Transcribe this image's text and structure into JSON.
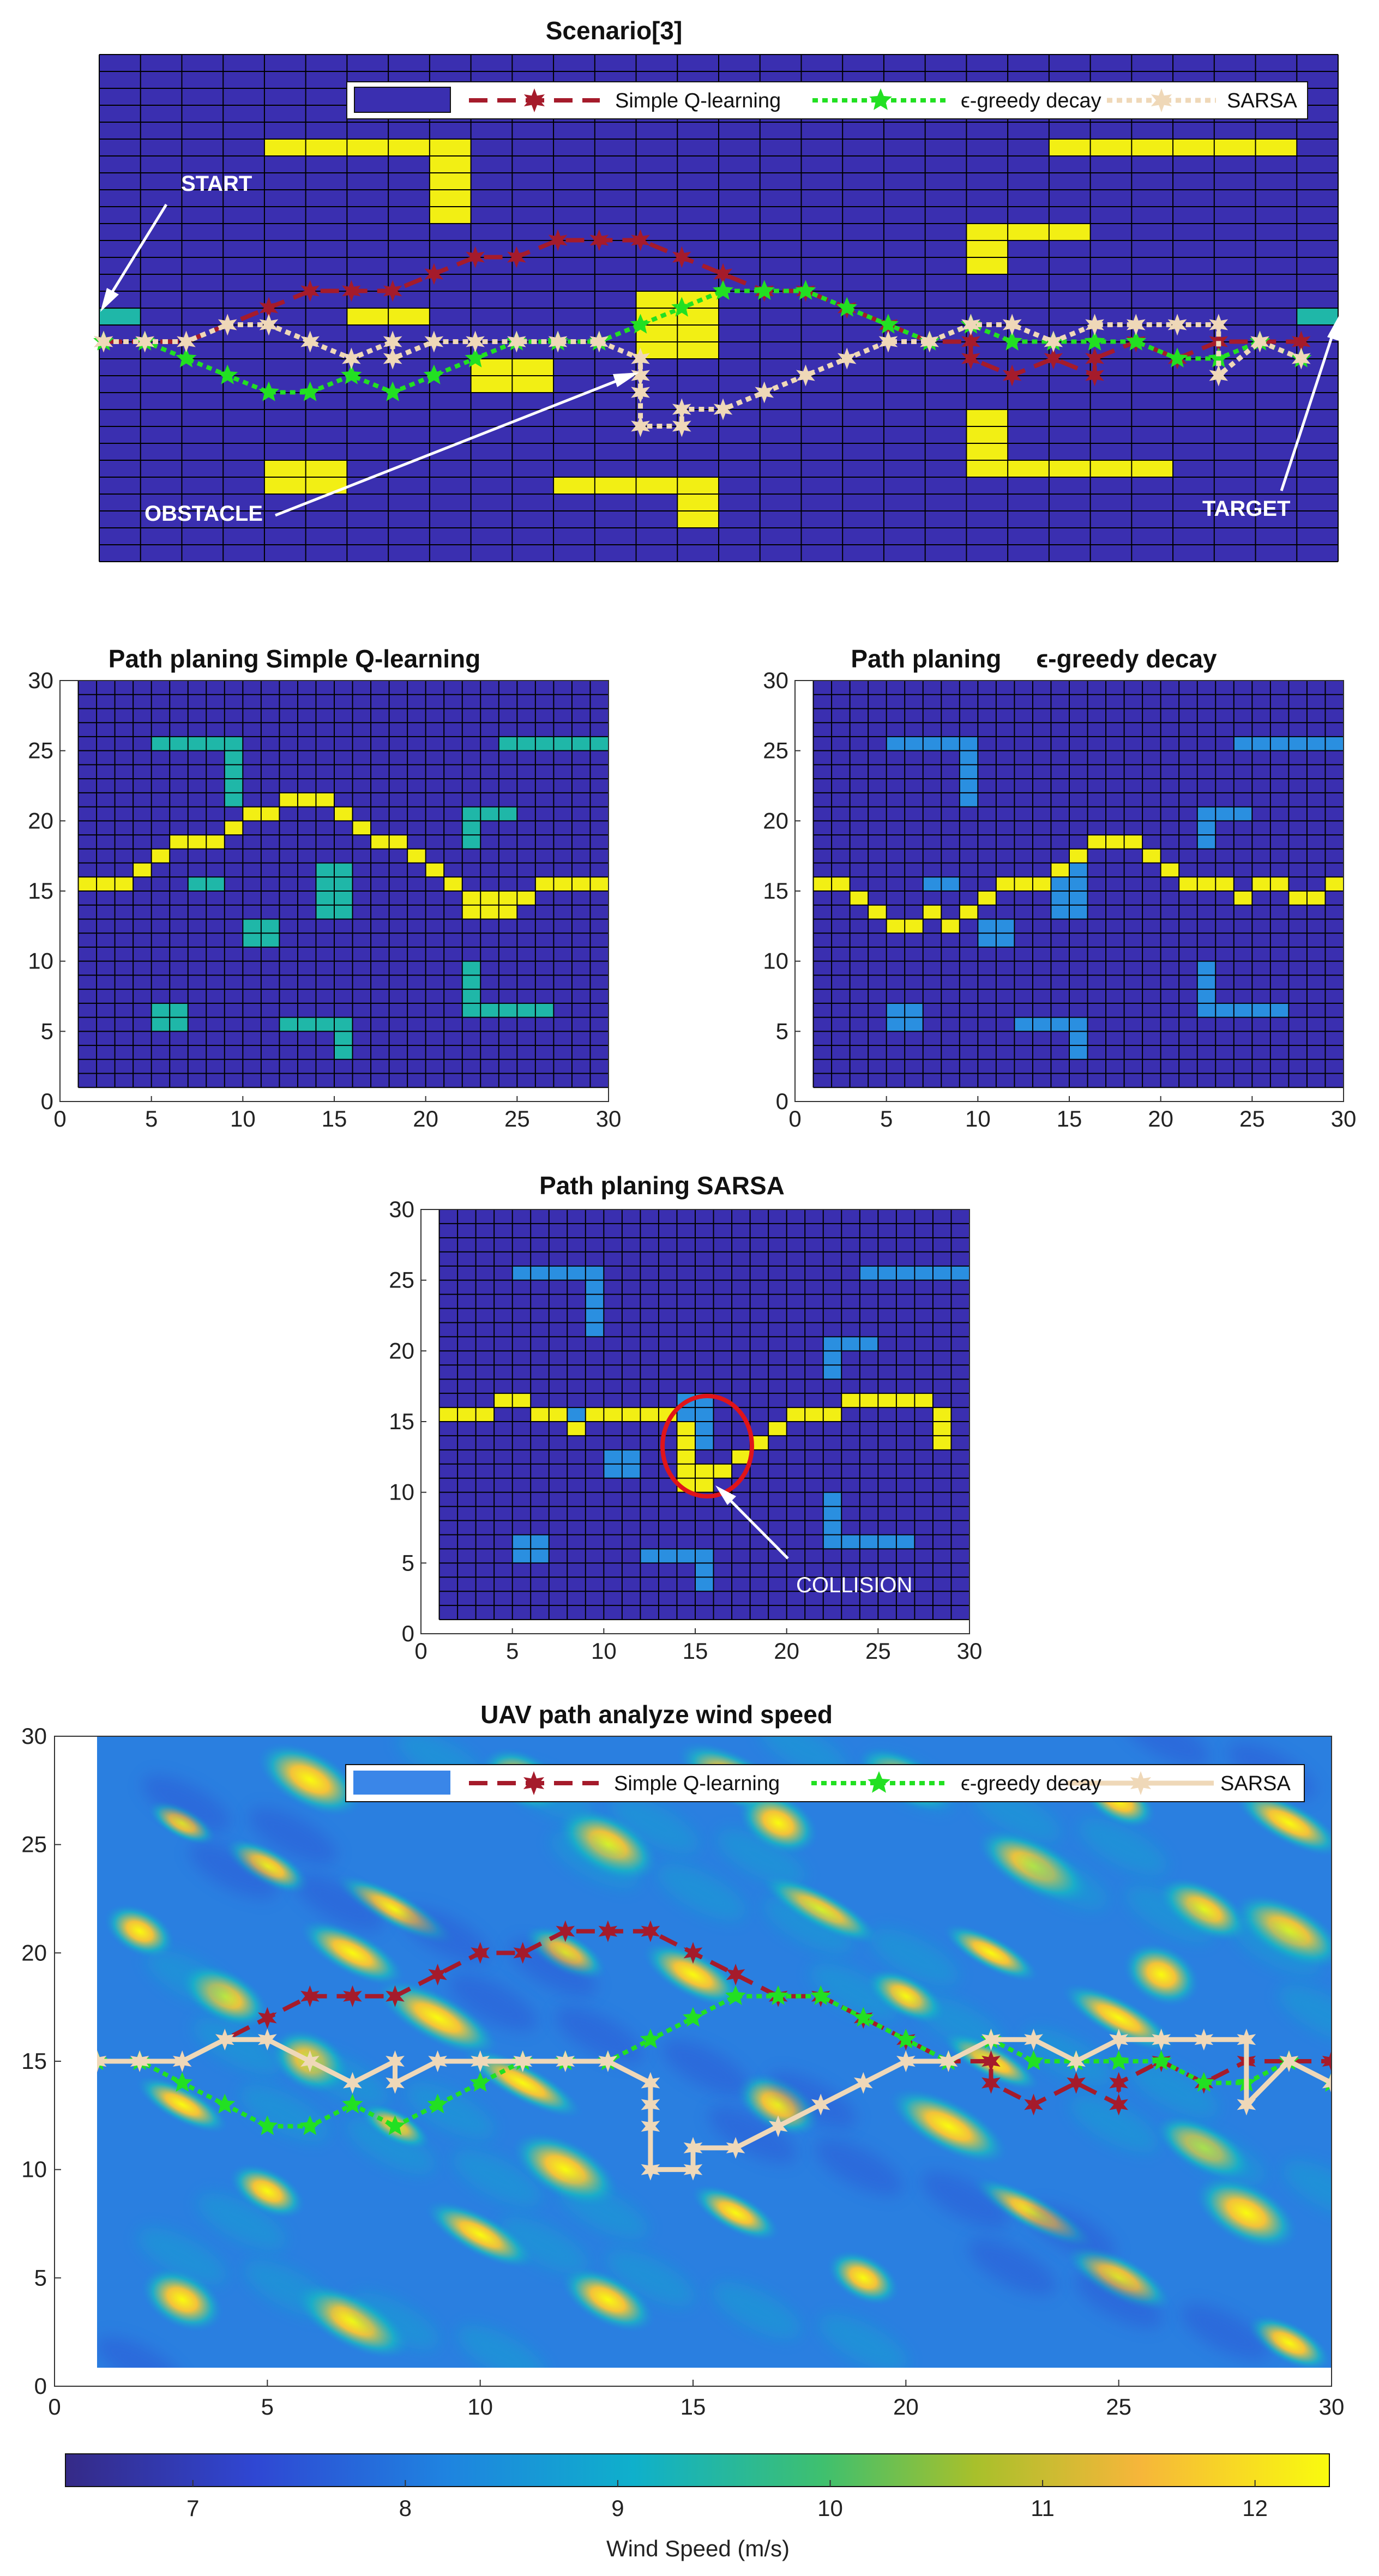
{
  "colors": {
    "grid_bg": "#3a2fb0",
    "obstacle_scenario": "#f2ef14",
    "obstacle_panel_q": "#1fb7a8",
    "obstacle_panel_e": "#2a8fe0",
    "path_cell": "#f2ef14",
    "q_learning": "#a51b2b",
    "eps_greedy": "#22e022",
    "sarsa": "#efd8b8",
    "collision_ring": "#e0141a"
  },
  "chart_data": [
    {
      "type": "line",
      "title": "Scenario[3]",
      "grid": {
        "cols": 30,
        "rows": 30
      },
      "legend": {
        "placement": "top",
        "swatch_color": "#3a2fb0",
        "entries": [
          "Simple Q-learning",
          "ϵ-greedy decay",
          "SARSA"
        ]
      },
      "annotations": [
        "START",
        "OBSTACLE",
        "TARGET"
      ],
      "obstacles": [
        {
          "x": 5,
          "y": 25
        },
        {
          "x": 6,
          "y": 25
        },
        {
          "x": 7,
          "y": 25
        },
        {
          "x": 8,
          "y": 25
        },
        {
          "x": 9,
          "y": 25
        },
        {
          "x": 9,
          "y": 24
        },
        {
          "x": 9,
          "y": 23
        },
        {
          "x": 9,
          "y": 22
        },
        {
          "x": 9,
          "y": 21
        },
        {
          "x": 24,
          "y": 25
        },
        {
          "x": 25,
          "y": 25
        },
        {
          "x": 26,
          "y": 25
        },
        {
          "x": 27,
          "y": 25
        },
        {
          "x": 28,
          "y": 25
        },
        {
          "x": 29,
          "y": 25
        },
        {
          "x": 22,
          "y": 20
        },
        {
          "x": 23,
          "y": 20
        },
        {
          "x": 24,
          "y": 20
        },
        {
          "x": 22,
          "y": 19
        },
        {
          "x": 22,
          "y": 18
        },
        {
          "x": 7,
          "y": 15
        },
        {
          "x": 8,
          "y": 15
        },
        {
          "x": 14,
          "y": 16
        },
        {
          "x": 15,
          "y": 16
        },
        {
          "x": 14,
          "y": 15
        },
        {
          "x": 15,
          "y": 15
        },
        {
          "x": 14,
          "y": 14
        },
        {
          "x": 15,
          "y": 14
        },
        {
          "x": 14,
          "y": 13
        },
        {
          "x": 15,
          "y": 13
        },
        {
          "x": 10,
          "y": 12
        },
        {
          "x": 11,
          "y": 12
        },
        {
          "x": 10,
          "y": 11
        },
        {
          "x": 11,
          "y": 11
        },
        {
          "x": 22,
          "y": 9
        },
        {
          "x": 22,
          "y": 8
        },
        {
          "x": 22,
          "y": 7
        },
        {
          "x": 22,
          "y": 6
        },
        {
          "x": 23,
          "y": 6
        },
        {
          "x": 24,
          "y": 6
        },
        {
          "x": 25,
          "y": 6
        },
        {
          "x": 26,
          "y": 6
        },
        {
          "x": 5,
          "y": 6
        },
        {
          "x": 6,
          "y": 6
        },
        {
          "x": 5,
          "y": 5
        },
        {
          "x": 6,
          "y": 5
        },
        {
          "x": 12,
          "y": 5
        },
        {
          "x": 13,
          "y": 5
        },
        {
          "x": 14,
          "y": 5
        },
        {
          "x": 15,
          "y": 5
        },
        {
          "x": 15,
          "y": 4
        },
        {
          "x": 15,
          "y": 3
        }
      ],
      "series": [
        {
          "name": "Simple Q-learning",
          "x": [
            1,
            2,
            3,
            4,
            5,
            6,
            7,
            8,
            9,
            10,
            11,
            12,
            13,
            14,
            15,
            16,
            17,
            18,
            19,
            20,
            21,
            22,
            22,
            23,
            24,
            25,
            25,
            26,
            27,
            28,
            29,
            30
          ],
          "y": [
            15,
            15,
            15,
            16,
            17,
            18,
            18,
            18,
            19,
            20,
            20,
            21,
            21,
            21,
            20,
            19,
            18,
            18,
            17,
            16,
            15,
            15,
            14,
            13,
            14,
            13,
            14,
            15,
            14,
            15,
            15,
            15
          ]
        },
        {
          "name": "ϵ-greedy decay",
          "x": [
            1,
            2,
            3,
            4,
            5,
            6,
            7,
            8,
            9,
            10,
            11,
            12,
            13,
            14,
            15,
            16,
            17,
            18,
            19,
            20,
            21,
            22,
            23,
            24,
            25,
            26,
            27,
            28,
            29,
            30
          ],
          "y": [
            15,
            15,
            14,
            13,
            12,
            12,
            13,
            12,
            13,
            14,
            15,
            15,
            15,
            16,
            17,
            18,
            18,
            18,
            17,
            16,
            15,
            16,
            15,
            15,
            15,
            15,
            14,
            14,
            15,
            14
          ]
        },
        {
          "name": "SARSA",
          "x": [
            1,
            2,
            3,
            4,
            5,
            6,
            7,
            8,
            8,
            9,
            10,
            11,
            12,
            13,
            14,
            14,
            14,
            14,
            15,
            15,
            16,
            17,
            18,
            19,
            20,
            21,
            22,
            23,
            24,
            25,
            26,
            27,
            28,
            28,
            29,
            30
          ],
          "y": [
            15,
            15,
            15,
            16,
            16,
            15,
            14,
            15,
            14,
            15,
            15,
            15,
            15,
            15,
            14,
            13,
            12,
            10,
            10,
            11,
            11,
            12,
            13,
            14,
            15,
            15,
            16,
            16,
            15,
            16,
            16,
            16,
            16,
            13,
            15,
            14
          ]
        }
      ]
    },
    {
      "type": "heatmap",
      "title": "Path planing Simple Q-learning",
      "xlim": [
        0,
        30
      ],
      "ylim": [
        0,
        30
      ],
      "xticks": [
        "0",
        "5",
        "10",
        "15",
        "20",
        "25",
        "30"
      ],
      "yticks": [
        "0",
        "5",
        "10",
        "15",
        "20",
        "25",
        "30"
      ],
      "path": [
        [
          1,
          15
        ],
        [
          2,
          15
        ],
        [
          3,
          15
        ],
        [
          4,
          16
        ],
        [
          5,
          17
        ],
        [
          6,
          18
        ],
        [
          7,
          18
        ],
        [
          8,
          18
        ],
        [
          9,
          19
        ],
        [
          10,
          20
        ],
        [
          11,
          20
        ],
        [
          12,
          21
        ],
        [
          13,
          21
        ],
        [
          14,
          21
        ],
        [
          15,
          20
        ],
        [
          16,
          19
        ],
        [
          17,
          18
        ],
        [
          18,
          18
        ],
        [
          19,
          17
        ],
        [
          20,
          16
        ],
        [
          21,
          15
        ],
        [
          22,
          14
        ],
        [
          22,
          13
        ],
        [
          23,
          13
        ],
        [
          23,
          14
        ],
        [
          24,
          14
        ],
        [
          24,
          13
        ],
        [
          25,
          14
        ],
        [
          26,
          15
        ],
        [
          27,
          15
        ],
        [
          28,
          15
        ],
        [
          29,
          15
        ]
      ]
    },
    {
      "type": "heatmap",
      "title": "Path planing     ϵ-greedy decay",
      "xlim": [
        0,
        30
      ],
      "ylim": [
        0,
        30
      ],
      "xticks": [
        "0",
        "5",
        "10",
        "15",
        "20",
        "25",
        "30"
      ],
      "yticks": [
        "0",
        "5",
        "10",
        "15",
        "20",
        "25",
        "30"
      ],
      "path": [
        [
          1,
          15
        ],
        [
          2,
          15
        ],
        [
          3,
          14
        ],
        [
          4,
          13
        ],
        [
          5,
          12
        ],
        [
          6,
          12
        ],
        [
          7,
          13
        ],
        [
          8,
          12
        ],
        [
          9,
          13
        ],
        [
          10,
          14
        ],
        [
          11,
          15
        ],
        [
          12,
          15
        ],
        [
          13,
          15
        ],
        [
          14,
          16
        ],
        [
          15,
          17
        ],
        [
          16,
          18
        ],
        [
          17,
          18
        ],
        [
          18,
          18
        ],
        [
          19,
          17
        ],
        [
          20,
          16
        ],
        [
          21,
          15
        ],
        [
          22,
          15
        ],
        [
          23,
          15
        ],
        [
          24,
          14
        ],
        [
          25,
          15
        ],
        [
          26,
          15
        ],
        [
          27,
          14
        ],
        [
          28,
          14
        ],
        [
          29,
          15
        ]
      ]
    },
    {
      "type": "heatmap",
      "title": "Path planing SARSA",
      "annotation": "COLLISION",
      "xlim": [
        0,
        30
      ],
      "ylim": [
        0,
        30
      ],
      "xticks": [
        "0",
        "5",
        "10",
        "15",
        "20",
        "25",
        "30"
      ],
      "yticks": [
        "0",
        "5",
        "10",
        "15",
        "20",
        "25",
        "30"
      ],
      "path": [
        [
          1,
          15
        ],
        [
          2,
          15
        ],
        [
          3,
          15
        ],
        [
          4,
          16
        ],
        [
          5,
          16
        ],
        [
          6,
          15
        ],
        [
          7,
          15
        ],
        [
          8,
          14
        ],
        [
          9,
          15
        ],
        [
          10,
          15
        ],
        [
          11,
          15
        ],
        [
          12,
          15
        ],
        [
          13,
          15
        ],
        [
          14,
          14
        ],
        [
          14,
          13
        ],
        [
          14,
          12
        ],
        [
          14,
          11
        ],
        [
          14,
          10
        ],
        [
          15,
          10
        ],
        [
          15,
          11
        ],
        [
          16,
          11
        ],
        [
          17,
          12
        ],
        [
          18,
          13
        ],
        [
          19,
          14
        ],
        [
          20,
          15
        ],
        [
          21,
          15
        ],
        [
          22,
          15
        ],
        [
          23,
          16
        ],
        [
          24,
          16
        ],
        [
          25,
          16
        ],
        [
          26,
          16
        ],
        [
          27,
          16
        ],
        [
          28,
          15
        ],
        [
          28,
          14
        ],
        [
          28,
          13
        ]
      ]
    },
    {
      "type": "line",
      "title": "UAV path analyze wind speed",
      "xlim": [
        0,
        30
      ],
      "ylim": [
        0,
        30
      ],
      "xticks": [
        "0",
        "5",
        "10",
        "15",
        "20",
        "25",
        "30"
      ],
      "yticks": [
        "0",
        "5",
        "10",
        "15",
        "20",
        "25",
        "30"
      ],
      "legend": {
        "placement": "top",
        "swatch_color": "#3a86e8",
        "entries": [
          "Simple Q-learning",
          "ϵ-greedy decay",
          "SARSA"
        ]
      },
      "colorbar": {
        "label": "Wind Speed (m/s)",
        "ticks": [
          "7",
          "8",
          "9",
          "10",
          "11",
          "12"
        ],
        "range": [
          6.4,
          12.35
        ]
      },
      "wind_hotspots": [
        [
          3,
          26
        ],
        [
          6,
          28
        ],
        [
          11,
          28
        ],
        [
          16,
          28
        ],
        [
          20,
          28
        ],
        [
          25,
          27
        ],
        [
          29,
          26
        ],
        [
          5,
          24
        ],
        [
          8,
          22
        ],
        [
          13,
          25
        ],
        [
          17,
          26
        ],
        [
          23,
          24
        ],
        [
          27,
          22
        ],
        [
          2,
          21
        ],
        [
          7,
          20
        ],
        [
          12,
          20
        ],
        [
          18,
          22
        ],
        [
          22,
          20
        ],
        [
          26,
          19
        ],
        [
          29,
          21
        ],
        [
          4,
          18
        ],
        [
          9,
          17
        ],
        [
          15,
          19
        ],
        [
          20,
          18
        ],
        [
          25,
          17
        ],
        [
          3,
          13
        ],
        [
          8,
          12
        ],
        [
          12,
          10
        ],
        [
          17,
          13
        ],
        [
          21,
          12
        ],
        [
          27,
          11
        ],
        [
          5,
          9
        ],
        [
          10,
          7
        ],
        [
          16,
          8
        ],
        [
          23,
          8
        ],
        [
          28,
          8
        ],
        [
          3,
          4
        ],
        [
          7,
          3
        ],
        [
          13,
          4
        ],
        [
          19,
          5
        ],
        [
          25,
          5
        ],
        [
          29,
          2
        ],
        [
          11,
          14
        ],
        [
          22,
          15
        ],
        [
          6,
          15
        ]
      ],
      "series": [
        {
          "name": "Simple Q-learning",
          "x": [
            1,
            2,
            3,
            4,
            5,
            6,
            7,
            8,
            9,
            10,
            11,
            12,
            13,
            14,
            15,
            16,
            17,
            18,
            19,
            20,
            21,
            22,
            22,
            23,
            24,
            25,
            25,
            26,
            27,
            28,
            29,
            30
          ],
          "y": [
            15,
            15,
            15,
            16,
            17,
            18,
            18,
            18,
            19,
            20,
            20,
            21,
            21,
            21,
            20,
            19,
            18,
            18,
            17,
            16,
            15,
            15,
            14,
            13,
            14,
            13,
            14,
            15,
            14,
            15,
            15,
            15
          ]
        },
        {
          "name": "ϵ-greedy decay",
          "x": [
            1,
            2,
            3,
            4,
            5,
            6,
            7,
            8,
            9,
            10,
            11,
            12,
            13,
            14,
            15,
            16,
            17,
            18,
            19,
            20,
            21,
            22,
            23,
            24,
            25,
            26,
            27,
            28,
            29,
            30
          ],
          "y": [
            15,
            15,
            14,
            13,
            12,
            12,
            13,
            12,
            13,
            14,
            15,
            15,
            15,
            16,
            17,
            18,
            18,
            18,
            17,
            16,
            15,
            16,
            15,
            15,
            15,
            15,
            14,
            14,
            15,
            14
          ]
        },
        {
          "name": "SARSA",
          "x": [
            1,
            2,
            3,
            4,
            5,
            6,
            7,
            8,
            8,
            9,
            10,
            11,
            12,
            13,
            14,
            14,
            14,
            14,
            15,
            15,
            16,
            17,
            18,
            19,
            20,
            21,
            22,
            23,
            24,
            25,
            26,
            27,
            28,
            28,
            29,
            30
          ],
          "y": [
            15,
            15,
            15,
            16,
            16,
            15,
            14,
            15,
            14,
            15,
            15,
            15,
            15,
            15,
            14,
            13,
            12,
            10,
            10,
            11,
            11,
            12,
            13,
            14,
            15,
            15,
            16,
            16,
            15,
            16,
            16,
            16,
            16,
            13,
            15,
            14
          ]
        }
      ]
    }
  ]
}
